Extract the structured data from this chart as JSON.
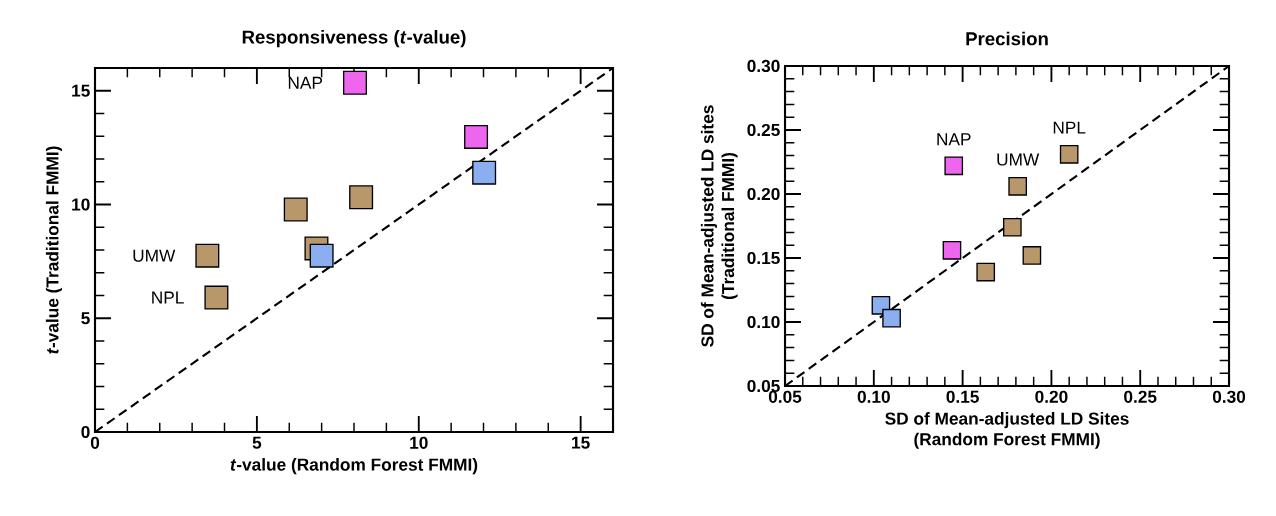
{
  "chart_data": [
    {
      "type": "scatter",
      "title": "Responsiveness (*t*-value)",
      "xlabel": "*t*-value (Random Forest FMMI)",
      "ylabel": "*t*-value (Traditional FMMI)",
      "xlim": [
        0,
        16
      ],
      "ylim": [
        0,
        16
      ],
      "xticks": [
        0,
        5,
        10,
        15
      ],
      "yticks": [
        0,
        5,
        10,
        15
      ],
      "grid": false,
      "marker": "square",
      "series": [
        {
          "color": "#b8976a",
          "x": [
            6.2,
            8.22,
            6.84,
            3.47,
            3.75
          ],
          "values": [
            9.78,
            10.32,
            8.07,
            7.75,
            5.91
          ]
        },
        {
          "color": "#ee66ee",
          "x": [
            8.03,
            11.77
          ],
          "values": [
            15.35,
            12.97
          ]
        },
        {
          "color": "#8aaef0",
          "x": [
            7.0,
            12.02
          ],
          "values": [
            7.75,
            11.4
          ]
        },
        {
          "type": "line",
          "color": "#000000",
          "line_style": "dashed",
          "marker": "none",
          "x": [
            0,
            16
          ],
          "values": [
            0,
            16
          ]
        }
      ],
      "annotations": [
        {
          "text": "NAP",
          "x": 8.03,
          "y": 15.35
        },
        {
          "text": "UMW",
          "x": 3.47,
          "y": 7.75
        },
        {
          "text": "NPL",
          "x": 3.75,
          "y": 5.91
        }
      ]
    },
    {
      "type": "scatter",
      "title": "Precision",
      "xlabel": "SD of Mean-adjusted LD Sites (Random Forest FMMI)",
      "ylabel": "SD of Mean-adjusted LD sites (Traditional FMMI)",
      "xlim": [
        0.05,
        0.3
      ],
      "ylim": [
        0.05,
        0.3
      ],
      "xticks": [
        0.05,
        {
          "value": 0.1,
          "label": "0.10"
        },
        0.15,
        {
          "value": 0.2,
          "label": "0.20"
        },
        0.25,
        {
          "value": 0.3,
          "label": "0.30"
        }
      ],
      "yticks": [
        0.05,
        {
          "value": 0.1,
          "label": "0.10"
        },
        0.15,
        {
          "value": 0.2,
          "label": "0.20"
        },
        0.25,
        {
          "value": 0.3,
          "label": "0.30"
        }
      ],
      "grid": false,
      "marker": "square",
      "series": [
        {
          "color": "#b8976a",
          "x": [
            0.181,
            0.21,
            0.178,
            0.189,
            0.163
          ],
          "values": [
            0.206,
            0.231,
            0.174,
            0.152,
            0.139
          ]
        },
        {
          "color": "#ee66ee",
          "x": [
            0.145,
            0.144
          ],
          "values": [
            0.222,
            0.156
          ]
        },
        {
          "color": "#8aaef0",
          "x": [
            0.104,
            0.11
          ],
          "values": [
            0.113,
            0.103
          ]
        },
        {
          "type": "line",
          "color": "#000000",
          "line_style": "dashed",
          "marker": "none",
          "x": [
            0.05,
            0.3
          ],
          "values": [
            0.05,
            0.3
          ]
        }
      ],
      "annotations": [
        {
          "text": "NAP",
          "x": 0.145,
          "y": 0.222
        },
        {
          "text": "UMW",
          "x": 0.181,
          "y": 0.206
        },
        {
          "text": "NPL",
          "x": 0.21,
          "y": 0.231
        }
      ]
    }
  ]
}
